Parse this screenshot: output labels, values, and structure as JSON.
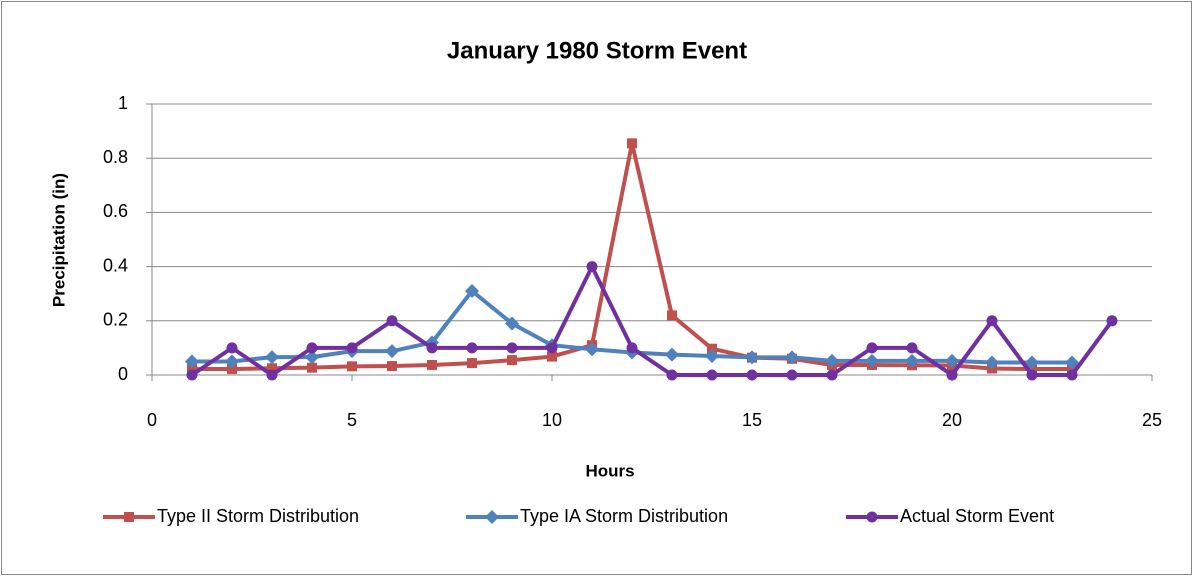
{
  "chart_data": {
    "type": "line",
    "title": "January 1980 Storm Event",
    "x_label": "Hours",
    "y_label": "Precipitation (in)",
    "x": [
      1,
      2,
      3,
      4,
      5,
      6,
      7,
      8,
      9,
      10,
      11,
      12,
      13,
      14,
      15,
      16,
      17,
      18,
      19,
      20,
      21,
      22,
      23,
      24
    ],
    "series": [
      {
        "name": "Type II Storm Distribution",
        "color": "#c0504d",
        "marker": "square",
        "values": [
          0.022,
          0.022,
          0.025,
          0.027,
          0.032,
          0.033,
          0.037,
          0.044,
          0.055,
          0.068,
          0.11,
          0.855,
          0.22,
          0.097,
          0.064,
          0.06,
          0.037,
          0.037,
          0.036,
          0.035,
          0.024,
          0.022,
          0.022,
          null
        ]
      },
      {
        "name": "Type IA Storm Distribution",
        "color": "#4f81bd",
        "marker": "diamond",
        "values": [
          0.05,
          0.05,
          0.066,
          0.066,
          0.088,
          0.088,
          0.12,
          0.31,
          0.19,
          0.11,
          0.095,
          0.083,
          0.075,
          0.07,
          0.065,
          0.065,
          0.052,
          0.052,
          0.052,
          0.052,
          0.046,
          0.046,
          0.046,
          null
        ]
      },
      {
        "name": "Actual Storm Event",
        "color": "#7030a0",
        "marker": "circle",
        "values": [
          0,
          0.1,
          0,
          0.1,
          0.1,
          0.2,
          0.1,
          0.1,
          0.1,
          0.1,
          0.4,
          0.1,
          0,
          0,
          0,
          0,
          0,
          0.1,
          0.1,
          0,
          0.2,
          0,
          0,
          0.2
        ]
      }
    ],
    "xlim": [
      0,
      25
    ],
    "xticks": [
      0,
      5,
      10,
      15,
      20,
      25
    ],
    "ylim": [
      0,
      1
    ],
    "yticks": [
      0,
      0.2,
      0.4,
      0.6,
      0.8,
      1
    ],
    "grid": true,
    "legend": "bottom"
  }
}
